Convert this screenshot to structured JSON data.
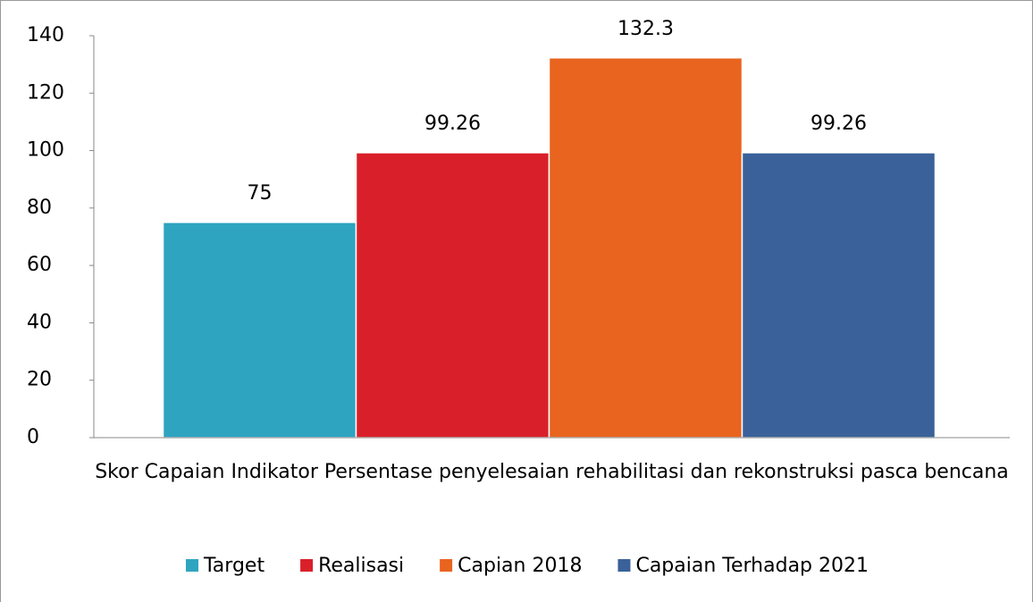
{
  "chart_data": {
    "type": "bar",
    "categories": [
      "Skor Capaian Indikator Persentase penyelesaian rehabilitasi dan rekonstruksi pasca bencana"
    ],
    "series": [
      {
        "name": "Target",
        "color": "#2ea4c1",
        "values": [
          75
        ]
      },
      {
        "name": "Realisasi",
        "color": "#d9202a",
        "values": [
          99.26
        ]
      },
      {
        "name": "Capian 2018",
        "color": "#e8641f",
        "values": [
          132.3
        ]
      },
      {
        "name": "Capaian Terhadap 2021",
        "color": "#3a6199",
        "values": [
          99.26
        ]
      }
    ],
    "ylim": [
      0,
      140
    ],
    "yticks": [
      0,
      20,
      40,
      60,
      80,
      100,
      120,
      140
    ],
    "grid": false,
    "data_labels": true,
    "legend": "bottom"
  }
}
